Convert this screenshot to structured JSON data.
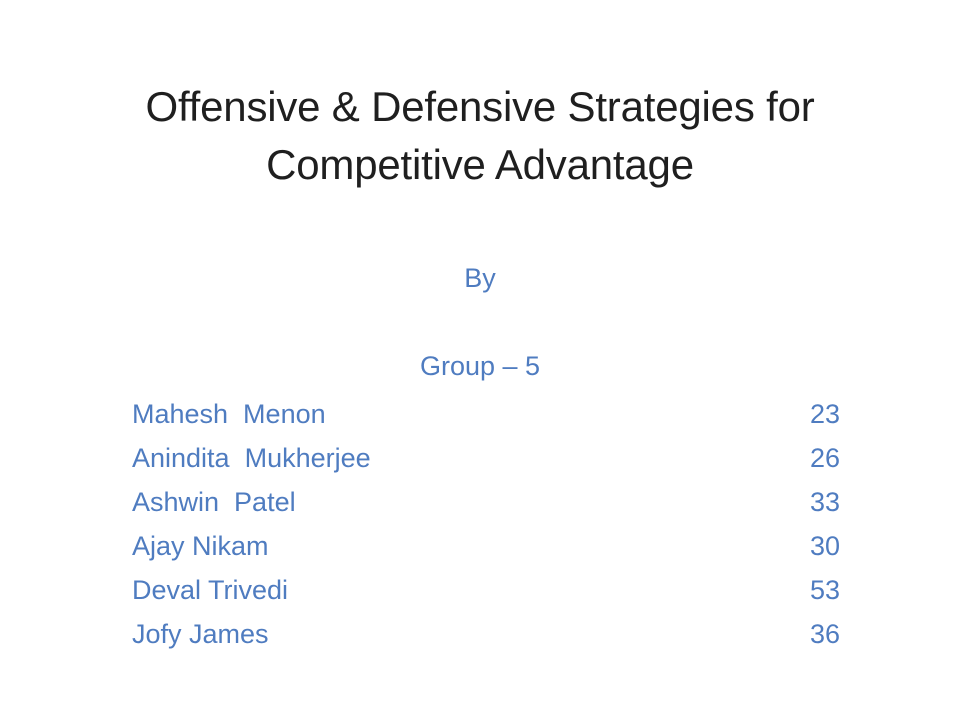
{
  "slide": {
    "title_lines": [
      "Offensive & Defensive Strategies for",
      "Competitive Advantage"
    ],
    "by_label": "By",
    "group_label": "Group – 5",
    "members": [
      {
        "name": "Mahesh  Menon",
        "roll": "23"
      },
      {
        "name": "Anindita  Mukherjee",
        "roll": "26"
      },
      {
        "name": "Ashwin  Patel",
        "roll": "33"
      },
      {
        "name": "Ajay Nikam",
        "roll": "30"
      },
      {
        "name": "Deval Trivedi",
        "roll": "53"
      },
      {
        "name": "Jofy James",
        "roll": "36"
      }
    ]
  },
  "colors": {
    "title_text": "#1f1f1f",
    "body_text": "#4f7cc0",
    "background": "#ffffff"
  }
}
